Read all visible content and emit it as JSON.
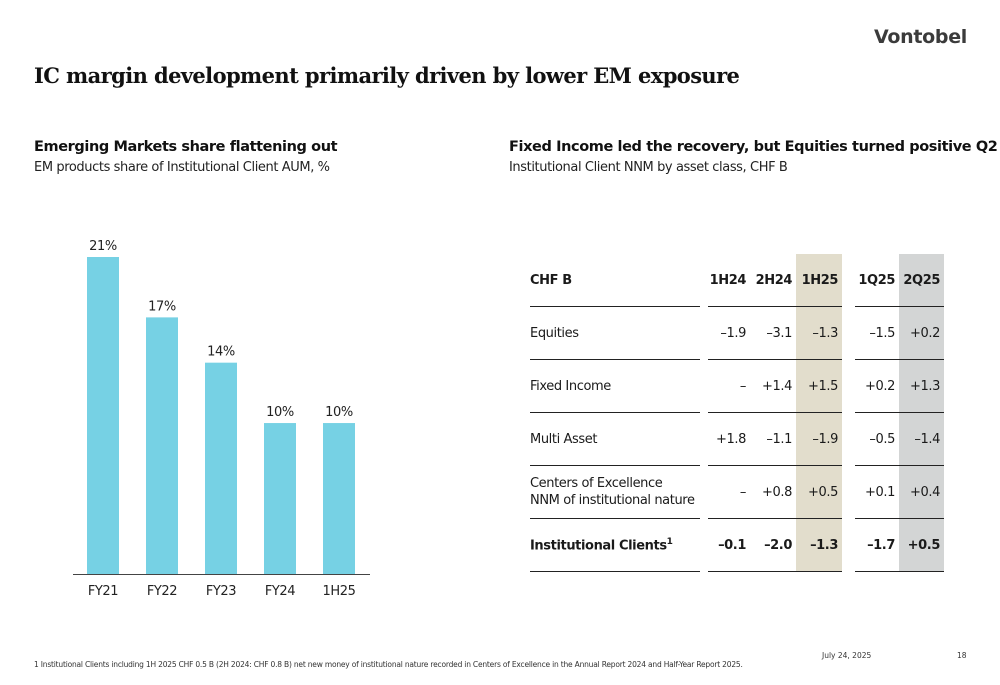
{
  "brand": {
    "logo": "Vontobel"
  },
  "title": "IC margin development primarily driven by lower EM exposure",
  "left": {
    "title": "Emerging Markets share flattening out",
    "subtitle": "EM products share of Institutional Client AUM, %"
  },
  "right": {
    "title": "Fixed Income led the recovery, but Equities turned positive Q2",
    "subtitle": "Institutional Client NNM by asset class, CHF B"
  },
  "chart_data": {
    "type": "bar",
    "title": "Emerging Markets share flattening out",
    "subtitle": "EM products share of Institutional Client AUM, %",
    "categories": [
      "FY21",
      "FY22",
      "FY23",
      "FY24",
      "1H25"
    ],
    "values": [
      21,
      17,
      14,
      10,
      10
    ],
    "data_labels": [
      "21%",
      "17%",
      "14%",
      "10%",
      "10%"
    ],
    "xlabel": "",
    "ylabel": "",
    "ylim": [
      0,
      21
    ],
    "grid": false,
    "bar_color": "#76d1e4",
    "legend": "none"
  },
  "table": {
    "header": [
      "CHF B",
      "1H24",
      "2H24",
      "1H25",
      "1Q25",
      "2Q25"
    ],
    "highlight_colors": {
      "1H25": "#e2ddcc",
      "2Q25": "#d3d5d5"
    },
    "rows": [
      {
        "label": "Equities",
        "label2": "",
        "values": [
          "–1.9",
          "–3.1",
          "–1.3",
          "–1.5",
          "+0.2"
        ]
      },
      {
        "label": "Fixed Income",
        "label2": "",
        "values": [
          "–",
          "+1.4",
          "+1.5",
          "+0.2",
          "+1.3"
        ]
      },
      {
        "label": "Multi Asset",
        "label2": "",
        "values": [
          "+1.8",
          "–1.1",
          "–1.9",
          "–0.5",
          "–1.4"
        ]
      },
      {
        "label": "Centers of Excellence",
        "label2": "NNM of institutional nature",
        "values": [
          "–",
          "+0.8",
          "+0.5",
          "+0.1",
          "+0.4"
        ]
      }
    ],
    "total": {
      "label": "Institutional Clients",
      "footnote_ref": "1",
      "values": [
        "–0.1",
        "–2.0",
        "–1.3",
        "–1.7",
        "+0.5"
      ]
    }
  },
  "footer": {
    "footnote": "1 Institutional Clients including 1H 2025 CHF 0.5 B (2H 2024: CHF 0.8 B) net new money of institutional nature recorded in Centers of Excellence in the Annual Report 2024 and Half-Year Report 2025.",
    "date": "July 24, 2025",
    "page": "18"
  }
}
